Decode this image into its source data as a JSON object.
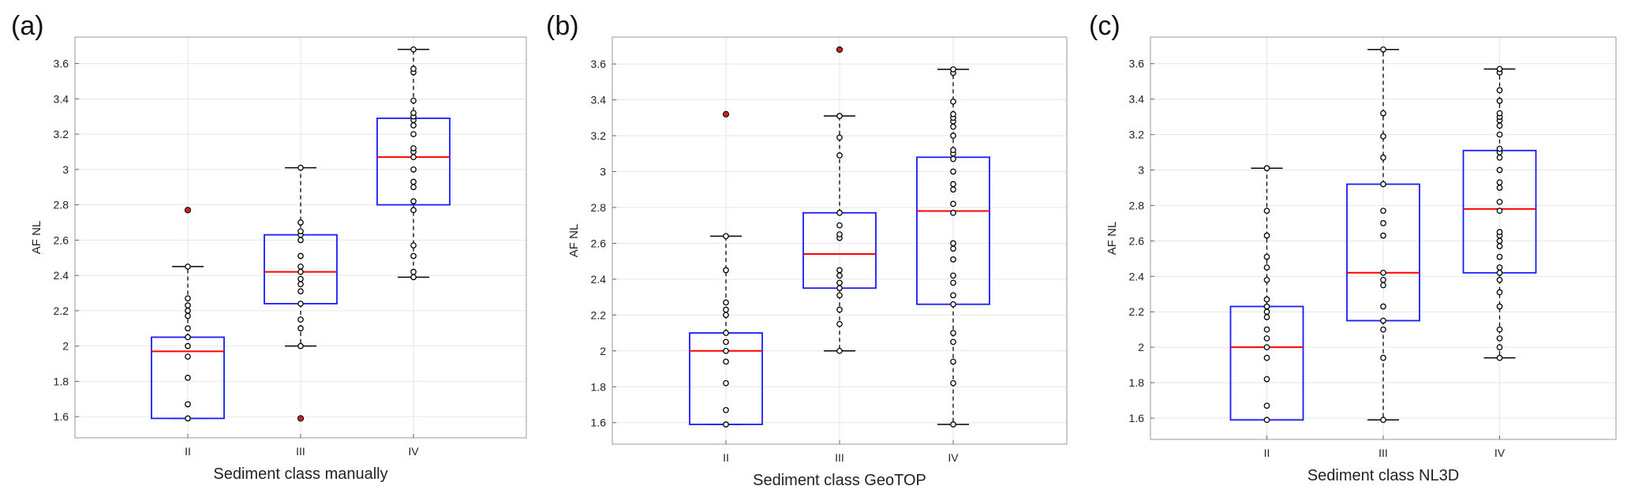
{
  "colors": {
    "box": "#1a1aff",
    "median": "#ff0000",
    "outlier": "#cc2222",
    "point": "#000000",
    "grid": "#e6e6e6",
    "axis": "#999999"
  },
  "chart_data": [
    {
      "type": "box",
      "panel_label": "(a)",
      "title": "",
      "xlabel": "Sediment class manually",
      "ylabel": "AF NL",
      "ylim": [
        1.48,
        3.75
      ],
      "yticks": [
        1.6,
        1.8,
        2,
        2.2,
        2.4,
        2.6,
        2.8,
        3,
        3.2,
        3.4,
        3.6
      ],
      "ytick_labels": [
        "1.6",
        "1.8",
        "2",
        "2.2",
        "2.4",
        "2.6",
        "2.8",
        "3",
        "3.2",
        "3.4",
        "3.6"
      ],
      "grid": true,
      "categories": [
        "II",
        "III",
        "IV"
      ],
      "boxes": [
        {
          "category": "II",
          "whisker_low": 1.59,
          "q1": 1.59,
          "median": 1.97,
          "q3": 2.05,
          "whisker_high": 2.45,
          "outliers": [
            2.77
          ],
          "points": [
            1.59,
            1.67,
            1.82,
            1.94,
            2.0,
            2.05,
            2.1,
            2.17,
            2.2,
            2.23,
            2.27,
            2.45
          ]
        },
        {
          "category": "III",
          "whisker_low": 2.0,
          "q1": 2.24,
          "median": 2.42,
          "q3": 2.63,
          "whisker_high": 3.01,
          "outliers": [
            1.59
          ],
          "points": [
            2.0,
            2.1,
            2.15,
            2.24,
            2.31,
            2.35,
            2.38,
            2.42,
            2.45,
            2.51,
            2.6,
            2.63,
            2.65,
            2.7,
            3.01
          ]
        },
        {
          "category": "IV",
          "whisker_low": 2.39,
          "q1": 2.8,
          "median": 3.07,
          "q3": 3.29,
          "whisker_high": 3.68,
          "outliers": [],
          "points": [
            2.39,
            2.42,
            2.51,
            2.57,
            2.77,
            2.82,
            2.9,
            2.93,
            3.0,
            3.07,
            3.1,
            3.12,
            3.2,
            3.25,
            3.28,
            3.3,
            3.32,
            3.39,
            3.55,
            3.57,
            3.68
          ]
        }
      ]
    },
    {
      "type": "box",
      "panel_label": "(b)",
      "title": "",
      "xlabel": "Sediment class GeoTOP",
      "ylabel": "AF NL",
      "ylim": [
        1.48,
        3.75
      ],
      "yticks": [
        1.6,
        1.8,
        2,
        2.2,
        2.4,
        2.6,
        2.8,
        3,
        3.2,
        3.4,
        3.6
      ],
      "ytick_labels": [
        "1.6",
        "1.8",
        "2",
        "2.2",
        "2.4",
        "2.6",
        "2.8",
        "3",
        "3.2",
        "3.4",
        "3.6"
      ],
      "grid": true,
      "categories": [
        "II",
        "III",
        "IV"
      ],
      "boxes": [
        {
          "category": "II",
          "whisker_low": 1.59,
          "q1": 1.59,
          "median": 2.0,
          "q3": 2.1,
          "whisker_high": 2.64,
          "outliers": [
            3.32
          ],
          "points": [
            1.59,
            1.67,
            1.82,
            1.94,
            2.0,
            2.05,
            2.1,
            2.2,
            2.23,
            2.27,
            2.45,
            2.64
          ]
        },
        {
          "category": "III",
          "whisker_low": 2.0,
          "q1": 2.35,
          "median": 2.54,
          "q3": 2.77,
          "whisker_high": 3.31,
          "outliers": [
            3.68
          ],
          "points": [
            2.0,
            2.15,
            2.23,
            2.31,
            2.35,
            2.38,
            2.42,
            2.45,
            2.63,
            2.65,
            2.7,
            2.77,
            3.09,
            3.19,
            3.31
          ]
        },
        {
          "category": "IV",
          "whisker_low": 1.59,
          "q1": 2.26,
          "median": 2.78,
          "q3": 3.08,
          "whisker_high": 3.57,
          "outliers": [],
          "points": [
            1.59,
            1.82,
            1.94,
            2.05,
            2.1,
            2.26,
            2.31,
            2.38,
            2.42,
            2.51,
            2.57,
            2.6,
            2.77,
            2.82,
            2.9,
            2.93,
            3.0,
            3.07,
            3.1,
            3.12,
            3.2,
            3.25,
            3.28,
            3.3,
            3.32,
            3.39,
            3.55,
            3.57
          ]
        }
      ]
    },
    {
      "type": "box",
      "panel_label": "(c)",
      "title": "",
      "xlabel": "Sediment class NL3D",
      "ylabel": "AF NL",
      "ylim": [
        1.48,
        3.75
      ],
      "yticks": [
        1.6,
        1.8,
        2,
        2.2,
        2.4,
        2.6,
        2.8,
        3,
        3.2,
        3.4,
        3.6
      ],
      "ytick_labels": [
        "1.6",
        "1.8",
        "2",
        "2.2",
        "2.4",
        "2.6",
        "2.8",
        "3",
        "3.2",
        "3.4",
        "3.6"
      ],
      "grid": true,
      "categories": [
        "II",
        "III",
        "IV"
      ],
      "boxes": [
        {
          "category": "II",
          "whisker_low": 1.59,
          "q1": 1.59,
          "median": 2.0,
          "q3": 2.23,
          "whisker_high": 3.01,
          "outliers": [],
          "points": [
            1.59,
            1.67,
            1.82,
            1.94,
            2.0,
            2.05,
            2.1,
            2.17,
            2.2,
            2.23,
            2.27,
            2.38,
            2.45,
            2.51,
            2.63,
            2.77,
            3.01
          ]
        },
        {
          "category": "III",
          "whisker_low": 1.59,
          "q1": 2.15,
          "median": 2.42,
          "q3": 2.92,
          "whisker_high": 3.68,
          "outliers": [],
          "points": [
            1.59,
            1.94,
            2.1,
            2.15,
            2.23,
            2.35,
            2.38,
            2.42,
            2.63,
            2.7,
            2.77,
            2.92,
            3.07,
            3.19,
            3.32,
            3.68
          ]
        },
        {
          "category": "IV",
          "whisker_low": 1.94,
          "q1": 2.42,
          "median": 2.78,
          "q3": 3.11,
          "whisker_high": 3.57,
          "outliers": [],
          "points": [
            1.94,
            2.0,
            2.05,
            2.1,
            2.23,
            2.31,
            2.38,
            2.42,
            2.45,
            2.51,
            2.57,
            2.6,
            2.63,
            2.65,
            2.77,
            2.82,
            2.9,
            2.93,
            3.0,
            3.07,
            3.1,
            3.12,
            3.2,
            3.25,
            3.28,
            3.3,
            3.32,
            3.39,
            3.45,
            3.55,
            3.57
          ]
        }
      ]
    }
  ]
}
